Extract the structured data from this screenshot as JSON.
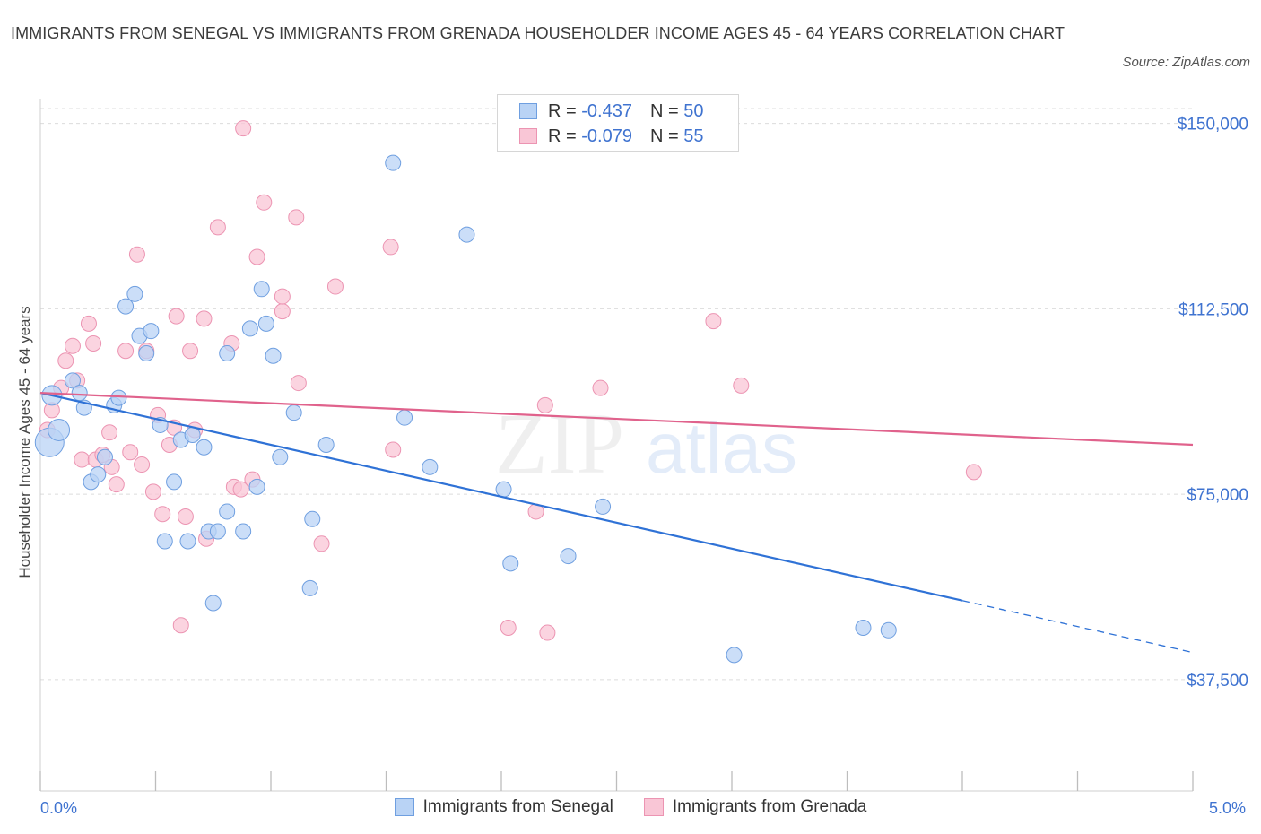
{
  "header": {
    "title": "IMMIGRANTS FROM SENEGAL VS IMMIGRANTS FROM GRENADA HOUSEHOLDER INCOME AGES 45 - 64 YEARS CORRELATION CHART",
    "source": "Source: ZipAtlas.com"
  },
  "colors": {
    "senegal_fill": "#b9d3f5",
    "senegal_stroke": "#6f9fe0",
    "senegal_line": "#2f72d6",
    "grenada_fill": "#f9c6d6",
    "grenada_stroke": "#ec94b2",
    "grenada_line": "#e0628c",
    "axis_value": "#3f73d0"
  },
  "stats": {
    "r_label": "R =",
    "n_label": "N =",
    "senegal_r": "-0.437",
    "senegal_n": "50",
    "grenada_r": "-0.079",
    "grenada_n": "55"
  },
  "watermark": {
    "zip": "ZIP",
    "atlas": "atlas"
  },
  "chart_data": {
    "type": "scatter",
    "title": "IMMIGRANTS FROM SENEGAL VS IMMIGRANTS FROM GRENADA HOUSEHOLDER INCOME AGES 45 - 64 YEARS CORRELATION CHART",
    "xlabel": "",
    "ylabel": "Householder Income Ages 45 - 64 years",
    "xlim": [
      0,
      5
    ],
    "ylim": [
      15000,
      155000
    ],
    "x_tick_labels": [
      "0.0%",
      "5.0%"
    ],
    "y_ticks": [
      37500,
      75000,
      112500,
      150000
    ],
    "y_tick_labels": [
      "$37,500",
      "$75,000",
      "$112,500",
      "$150,000"
    ],
    "grid": true,
    "legend_position": "bottom",
    "series": [
      {
        "name": "Immigrants from Senegal",
        "trend": {
          "x0": 0,
          "y0": 95500,
          "x1": 4.0,
          "y1": 53500,
          "dashed_to_x": 5.0
        },
        "points": [
          [
            0.04,
            85500
          ],
          [
            0.08,
            88000
          ],
          [
            0.05,
            95000
          ],
          [
            0.14,
            98000
          ],
          [
            0.17,
            95500
          ],
          [
            0.19,
            92500
          ],
          [
            0.22,
            77500
          ],
          [
            0.25,
            79000
          ],
          [
            0.28,
            82500
          ],
          [
            0.32,
            93000
          ],
          [
            0.34,
            94500
          ],
          [
            0.37,
            113000
          ],
          [
            0.41,
            115500
          ],
          [
            0.43,
            107000
          ],
          [
            0.46,
            103500
          ],
          [
            0.48,
            108000
          ],
          [
            0.52,
            89000
          ],
          [
            0.54,
            65500
          ],
          [
            0.58,
            77500
          ],
          [
            0.61,
            86000
          ],
          [
            0.64,
            65500
          ],
          [
            0.66,
            87000
          ],
          [
            0.71,
            84500
          ],
          [
            0.73,
            67500
          ],
          [
            0.75,
            53000
          ],
          [
            0.77,
            67500
          ],
          [
            0.81,
            103500
          ],
          [
            0.81,
            71500
          ],
          [
            0.88,
            67500
          ],
          [
            0.91,
            108500
          ],
          [
            0.94,
            76500
          ],
          [
            0.96,
            116500
          ],
          [
            0.98,
            109500
          ],
          [
            1.01,
            103000
          ],
          [
            1.04,
            82500
          ],
          [
            1.1,
            91500
          ],
          [
            1.18,
            70000
          ],
          [
            1.17,
            56000
          ],
          [
            1.24,
            85000
          ],
          [
            1.53,
            142000
          ],
          [
            1.58,
            90500
          ],
          [
            1.69,
            80500
          ],
          [
            1.85,
            127500
          ],
          [
            2.01,
            76000
          ],
          [
            2.04,
            61000
          ],
          [
            2.29,
            62500
          ],
          [
            2.44,
            72500
          ],
          [
            3.01,
            42500
          ],
          [
            3.57,
            48000
          ],
          [
            3.68,
            47500
          ]
        ]
      },
      {
        "name": "Immigrants from Grenada",
        "trend": {
          "x0": 0,
          "y0": 95500,
          "x1": 5.0,
          "y1": 85000
        },
        "points": [
          [
            0.03,
            88000
          ],
          [
            0.05,
            92000
          ],
          [
            0.09,
            96500
          ],
          [
            0.11,
            102000
          ],
          [
            0.14,
            105000
          ],
          [
            0.16,
            98000
          ],
          [
            0.18,
            82000
          ],
          [
            0.21,
            109500
          ],
          [
            0.23,
            105500
          ],
          [
            0.24,
            82000
          ],
          [
            0.27,
            83000
          ],
          [
            0.3,
            87500
          ],
          [
            0.31,
            80500
          ],
          [
            0.33,
            77000
          ],
          [
            0.37,
            104000
          ],
          [
            0.39,
            83500
          ],
          [
            0.42,
            123500
          ],
          [
            0.44,
            81000
          ],
          [
            0.46,
            104000
          ],
          [
            0.49,
            75500
          ],
          [
            0.51,
            91000
          ],
          [
            0.53,
            71000
          ],
          [
            0.56,
            85000
          ],
          [
            0.58,
            88500
          ],
          [
            0.59,
            111000
          ],
          [
            0.61,
            48500
          ],
          [
            0.63,
            70500
          ],
          [
            0.65,
            104000
          ],
          [
            0.67,
            88000
          ],
          [
            0.71,
            110500
          ],
          [
            0.72,
            66000
          ],
          [
            0.77,
            129000
          ],
          [
            0.83,
            105500
          ],
          [
            0.84,
            76500
          ],
          [
            0.87,
            76000
          ],
          [
            0.88,
            149000
          ],
          [
            0.92,
            78000
          ],
          [
            0.94,
            123000
          ],
          [
            0.97,
            134000
          ],
          [
            1.05,
            112000
          ],
          [
            1.05,
            115000
          ],
          [
            1.11,
            131000
          ],
          [
            1.12,
            97500
          ],
          [
            1.22,
            65000
          ],
          [
            1.28,
            117000
          ],
          [
            1.52,
            125000
          ],
          [
            1.53,
            84000
          ],
          [
            2.03,
            48000
          ],
          [
            2.15,
            71500
          ],
          [
            2.19,
            93000
          ],
          [
            2.2,
            47000
          ],
          [
            2.43,
            96500
          ],
          [
            2.92,
            110000
          ],
          [
            3.04,
            97000
          ],
          [
            4.05,
            79500
          ]
        ]
      }
    ]
  }
}
